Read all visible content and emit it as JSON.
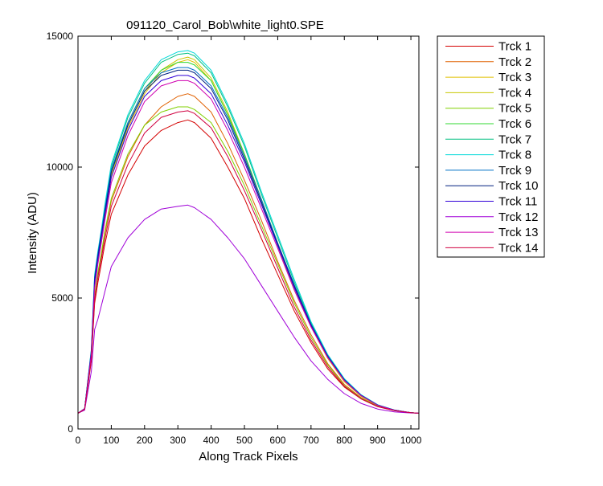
{
  "chart_data": {
    "type": "line",
    "title": "091120_Carol_Bob\\white_light0.SPE",
    "xlabel": "Along Track Pixels",
    "ylabel": "Intensity (ADU)",
    "xlim": [
      0,
      1024
    ],
    "ylim": [
      0,
      15000
    ],
    "xticks": [
      0,
      100,
      200,
      300,
      400,
      500,
      600,
      700,
      800,
      900,
      1000
    ],
    "yticks": [
      0,
      5000,
      10000,
      15000
    ],
    "grid": false,
    "legend_position": "outside-right",
    "x": [
      0,
      20,
      40,
      50,
      60,
      70,
      80,
      100,
      150,
      200,
      250,
      300,
      330,
      350,
      400,
      450,
      500,
      550,
      600,
      650,
      700,
      750,
      800,
      850,
      900,
      950,
      1000,
      1024
    ],
    "series": [
      {
        "name": "Trck 1",
        "color": "#d40000",
        "values": [
          600,
          750,
          2600,
          4800,
          5600,
          6300,
          7000,
          8200,
          9700,
          10800,
          11400,
          11700,
          11800,
          11700,
          11100,
          10000,
          8800,
          7300,
          5900,
          4500,
          3300,
          2300,
          1600,
          1150,
          850,
          700,
          620,
          600
        ]
      },
      {
        "name": "Trck 2",
        "color": "#e06000",
        "values": [
          600,
          760,
          2700,
          5000,
          5900,
          6600,
          7400,
          8700,
          10400,
          11600,
          12300,
          12700,
          12800,
          12700,
          12100,
          10900,
          9500,
          8000,
          6400,
          4900,
          3600,
          2500,
          1700,
          1200,
          880,
          710,
          620,
          600
        ]
      },
      {
        "name": "Trck 3",
        "color": "#e0c000",
        "values": [
          600,
          770,
          2900,
          5500,
          6400,
          7100,
          8000,
          9600,
          11500,
          12800,
          13600,
          14000,
          14100,
          14000,
          13300,
          12000,
          10400,
          8700,
          7000,
          5300,
          3900,
          2700,
          1800,
          1250,
          900,
          720,
          620,
          600
        ]
      },
      {
        "name": "Trck 4",
        "color": "#c8c800",
        "values": [
          600,
          770,
          2900,
          5500,
          6400,
          7200,
          8100,
          9700,
          11600,
          12900,
          13700,
          14100,
          14200,
          14100,
          13400,
          12100,
          10500,
          8800,
          7100,
          5400,
          3950,
          2750,
          1850,
          1270,
          910,
          720,
          620,
          600
        ]
      },
      {
        "name": "Trck 5",
        "color": "#80d000",
        "values": [
          600,
          760,
          2750,
          5100,
          6000,
          6700,
          7500,
          8800,
          10500,
          11600,
          12100,
          12300,
          12300,
          12200,
          11700,
          10600,
          9300,
          7800,
          6300,
          4800,
          3500,
          2450,
          1650,
          1180,
          870,
          705,
          620,
          600
        ]
      },
      {
        "name": "Trck 6",
        "color": "#30d830",
        "values": [
          600,
          770,
          2950,
          5600,
          6500,
          7300,
          8200,
          9800,
          11700,
          13000,
          13700,
          14000,
          14000,
          13900,
          13300,
          12000,
          10500,
          8800,
          7100,
          5400,
          3950,
          2750,
          1850,
          1270,
          910,
          720,
          620,
          600
        ]
      },
      {
        "name": "Trck 7",
        "color": "#00c080",
        "values": [
          600,
          780,
          3000,
          5800,
          6700,
          7500,
          8400,
          10000,
          11900,
          13200,
          14000,
          14300,
          14350,
          14250,
          13600,
          12300,
          10800,
          9000,
          7300,
          5600,
          4050,
          2800,
          1900,
          1300,
          920,
          725,
          620,
          600
        ]
      },
      {
        "name": "Trck 8",
        "color": "#00d8d8",
        "values": [
          600,
          780,
          3050,
          5900,
          6800,
          7600,
          8500,
          10100,
          12000,
          13300,
          14100,
          14400,
          14450,
          14350,
          13700,
          12400,
          10900,
          9100,
          7400,
          5700,
          4100,
          2850,
          1920,
          1310,
          925,
          725,
          620,
          600
        ]
      },
      {
        "name": "Trck 9",
        "color": "#0070c8",
        "values": [
          600,
          780,
          3000,
          5800,
          6700,
          7500,
          8300,
          9900,
          11700,
          13000,
          13600,
          13800,
          13800,
          13700,
          13100,
          11900,
          10400,
          8800,
          7100,
          5500,
          4000,
          2800,
          1880,
          1290,
          915,
          720,
          620,
          600
        ]
      },
      {
        "name": "Trck 10",
        "color": "#002080",
        "values": [
          600,
          775,
          2950,
          5700,
          6600,
          7400,
          8200,
          9800,
          11600,
          12900,
          13500,
          13700,
          13700,
          13600,
          13000,
          11800,
          10300,
          8700,
          7050,
          5450,
          3980,
          2780,
          1870,
          1285,
          912,
          720,
          620,
          600
        ]
      },
      {
        "name": "Trck 11",
        "color": "#3000d8",
        "values": [
          600,
          775,
          2900,
          5600,
          6500,
          7300,
          8100,
          9600,
          11400,
          12700,
          13300,
          13500,
          13500,
          13400,
          12800,
          11600,
          10200,
          8600,
          7000,
          5400,
          3950,
          2760,
          1860,
          1280,
          910,
          718,
          620,
          600
        ]
      },
      {
        "name": "Trck 12",
        "color": "#a000d8",
        "values": [
          600,
          720,
          2200,
          3800,
          4200,
          4700,
          5200,
          6200,
          7300,
          8000,
          8400,
          8500,
          8550,
          8450,
          8000,
          7300,
          6500,
          5500,
          4500,
          3500,
          2600,
          1900,
          1350,
          980,
          760,
          650,
          610,
          600
        ]
      },
      {
        "name": "Trck 13",
        "color": "#d000b0",
        "values": [
          600,
          770,
          2850,
          5400,
          6300,
          7100,
          7900,
          9400,
          11200,
          12500,
          13100,
          13300,
          13300,
          13200,
          12600,
          11400,
          10000,
          8450,
          6900,
          5300,
          3900,
          2730,
          1840,
          1270,
          905,
          716,
          620,
          600
        ]
      },
      {
        "name": "Trck 14",
        "color": "#d00040",
        "values": [
          600,
          755,
          2650,
          4950,
          5800,
          6500,
          7200,
          8500,
          10100,
          11300,
          11900,
          12100,
          12150,
          12050,
          11500,
          10400,
          9100,
          7650,
          6150,
          4650,
          3400,
          2380,
          1630,
          1160,
          860,
          702,
          620,
          600
        ]
      }
    ]
  }
}
